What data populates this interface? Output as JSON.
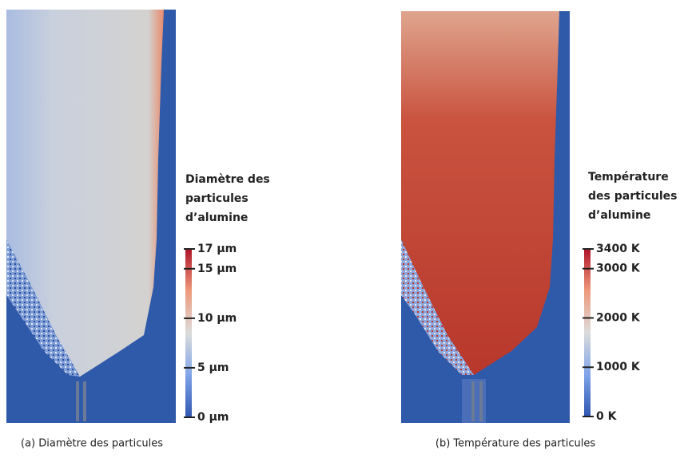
{
  "panels": [
    {
      "caption": "(a) Diamètre des particules",
      "colorbar": {
        "title": [
          "Diamètre des",
          "particules",
          "d’alumine"
        ],
        "range": [
          0,
          17
        ],
        "ticks": [
          {
            "value": 17,
            "label": "17 µm"
          },
          {
            "value": 15,
            "label": "15 µm"
          },
          {
            "value": 10,
            "label": "10 µm"
          },
          {
            "value": 5,
            "label": "5 µm"
          },
          {
            "value": 0,
            "label": "0 µm"
          }
        ]
      }
    },
    {
      "caption": "(b) Température des particules",
      "colorbar": {
        "title": [
          "Température",
          "des particules",
          "d’alumine"
        ],
        "range": [
          0,
          3400
        ],
        "ticks": [
          {
            "value": 3400,
            "label": "3400 K"
          },
          {
            "value": 3000,
            "label": "3000 K"
          },
          {
            "value": 2000,
            "label": "2000 K"
          },
          {
            "value": 1000,
            "label": "1000 K"
          },
          {
            "value": 0,
            "label": "0 K"
          }
        ]
      }
    }
  ]
}
